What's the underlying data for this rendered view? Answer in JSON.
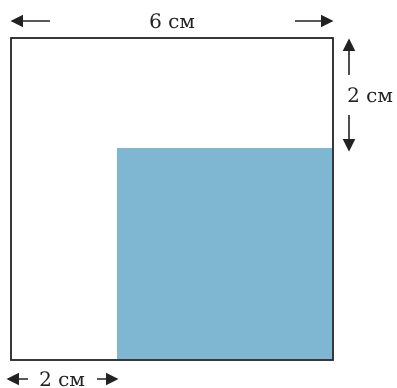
{
  "labels": {
    "top_width": "6 см",
    "right_height": "2 см",
    "bottom_left": "2 см"
  },
  "colors": {
    "outline": "#222222",
    "shaded": "#7fb7d3",
    "arrow": "#222222"
  }
}
